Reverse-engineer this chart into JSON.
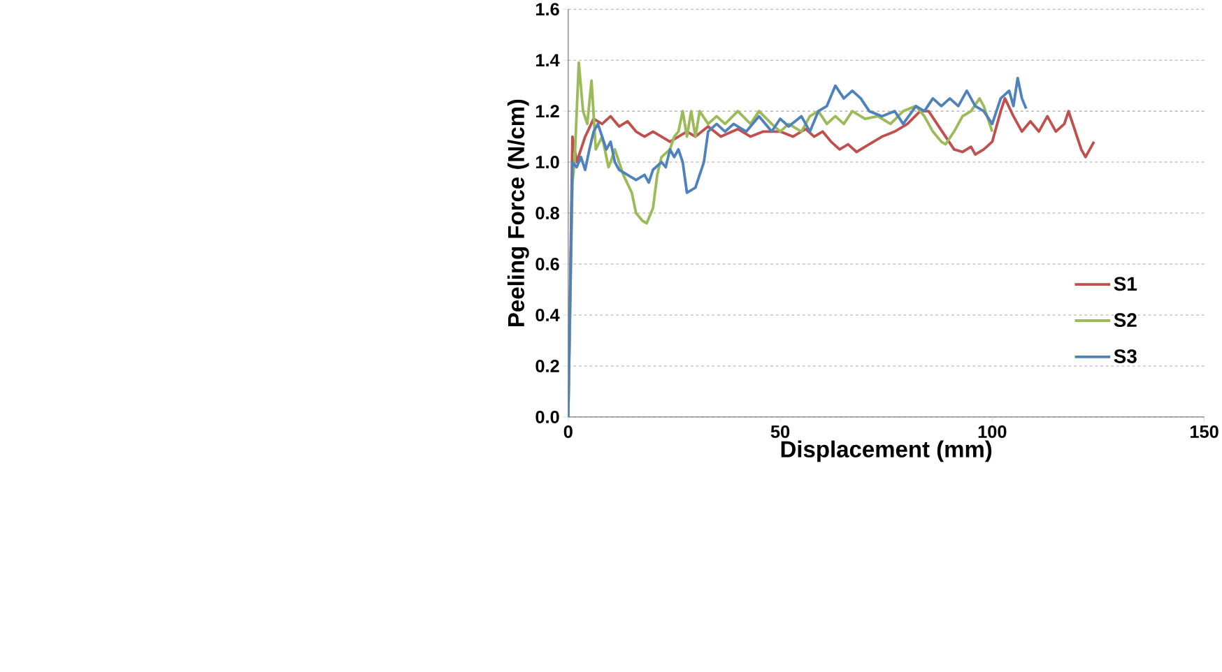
{
  "chart_data": {
    "type": "line",
    "xlabel": "Displacement (mm)",
    "ylabel": "Peeling Force (N/cm)",
    "xlim": [
      0,
      150
    ],
    "xticks": [
      0,
      50,
      100,
      150
    ],
    "ylim": [
      0,
      1.6
    ],
    "yticks": [
      {
        "value": 0,
        "label": "0.0"
      },
      {
        "value": 0.2,
        "label": "0.2"
      },
      {
        "value": 0.4,
        "label": "0.4"
      },
      {
        "value": 0.6,
        "label": "0.6"
      },
      {
        "value": 0.8,
        "label": "0.8"
      },
      {
        "value": 1.0,
        "label": "1.0"
      },
      {
        "value": 1.2,
        "label": "1.2"
      },
      {
        "value": 1.4,
        "label": "1.4"
      },
      {
        "value": 1.6,
        "label": "1.6"
      }
    ],
    "grid": "y",
    "legend": "right",
    "marker": "none",
    "line_style": "solid",
    "series": [
      {
        "name": "S1",
        "color": "#c0504d",
        "x": [
          0,
          1,
          2,
          3,
          4,
          6,
          8,
          10,
          12,
          14,
          16,
          18,
          20,
          22,
          24,
          26,
          28,
          30,
          33,
          36,
          40,
          43,
          46,
          50,
          53,
          56,
          58,
          60,
          62,
          64,
          66,
          68,
          70,
          72,
          74,
          77,
          80,
          83,
          85,
          87,
          89,
          91,
          93,
          95,
          96,
          98,
          100,
          102,
          103,
          105,
          107,
          109,
          111,
          113,
          115,
          117,
          118,
          120,
          121,
          122,
          123,
          124
        ],
        "values": [
          0,
          1.1,
          1.0,
          1.05,
          1.1,
          1.17,
          1.15,
          1.18,
          1.14,
          1.16,
          1.12,
          1.1,
          1.12,
          1.1,
          1.08,
          1.1,
          1.12,
          1.1,
          1.14,
          1.1,
          1.13,
          1.1,
          1.12,
          1.12,
          1.1,
          1.13,
          1.1,
          1.12,
          1.08,
          1.05,
          1.07,
          1.04,
          1.06,
          1.08,
          1.1,
          1.12,
          1.15,
          1.2,
          1.2,
          1.15,
          1.1,
          1.05,
          1.04,
          1.06,
          1.03,
          1.05,
          1.08,
          1.2,
          1.25,
          1.18,
          1.12,
          1.16,
          1.12,
          1.18,
          1.12,
          1.15,
          1.2,
          1.1,
          1.05,
          1.02,
          1.05,
          1.08
        ]
      },
      {
        "name": "S2",
        "color": "#9bbb59",
        "x": [
          0,
          1,
          1.5,
          2.5,
          3.5,
          4.5,
          5.5,
          6.5,
          8,
          9.5,
          10,
          11,
          13,
          15,
          16,
          17.5,
          18.5,
          20,
          21,
          22,
          24,
          25,
          26,
          27,
          28,
          29,
          30,
          31,
          33,
          35,
          37,
          40,
          43,
          45,
          48,
          50,
          52,
          55,
          57,
          59,
          61,
          63,
          65,
          67,
          70,
          73,
          76,
          79,
          82,
          84,
          86,
          88,
          89,
          91,
          93,
          95,
          97,
          98,
          100
        ],
        "values": [
          0,
          0.92,
          1.0,
          1.39,
          1.2,
          1.15,
          1.32,
          1.05,
          1.1,
          0.98,
          1.0,
          1.05,
          0.95,
          0.88,
          0.8,
          0.77,
          0.76,
          0.82,
          0.95,
          1.02,
          1.05,
          1.1,
          1.12,
          1.2,
          1.1,
          1.2,
          1.1,
          1.2,
          1.15,
          1.18,
          1.15,
          1.2,
          1.15,
          1.2,
          1.15,
          1.12,
          1.15,
          1.12,
          1.18,
          1.2,
          1.15,
          1.18,
          1.15,
          1.2,
          1.17,
          1.18,
          1.15,
          1.2,
          1.22,
          1.18,
          1.12,
          1.08,
          1.07,
          1.12,
          1.18,
          1.2,
          1.25,
          1.22,
          1.12
        ]
      },
      {
        "name": "S3",
        "color": "#4f81bd",
        "x": [
          0,
          0.5,
          1,
          2,
          3,
          4,
          5,
          6,
          7,
          8,
          9,
          10,
          11,
          12,
          14,
          16,
          18,
          19,
          20,
          22,
          23,
          24,
          25,
          26,
          27,
          28,
          30,
          32,
          33,
          35,
          37,
          39,
          42,
          45,
          48,
          50,
          52,
          55,
          57,
          59,
          61,
          63,
          65,
          67,
          69,
          71,
          74,
          77,
          79,
          82,
          84,
          86,
          88,
          90,
          92,
          94,
          96,
          98,
          100,
          102,
          104,
          105,
          106,
          107,
          108
        ],
        "values": [
          0,
          0.5,
          1.0,
          0.98,
          1.02,
          0.97,
          1.05,
          1.12,
          1.15,
          1.1,
          1.05,
          1.08,
          1.0,
          0.97,
          0.95,
          0.93,
          0.95,
          0.92,
          0.97,
          1.0,
          0.98,
          1.05,
          1.02,
          1.05,
          1.0,
          0.88,
          0.9,
          1.0,
          1.12,
          1.15,
          1.12,
          1.15,
          1.12,
          1.18,
          1.12,
          1.17,
          1.14,
          1.18,
          1.12,
          1.2,
          1.22,
          1.3,
          1.25,
          1.28,
          1.25,
          1.2,
          1.18,
          1.2,
          1.15,
          1.22,
          1.2,
          1.25,
          1.22,
          1.25,
          1.22,
          1.28,
          1.22,
          1.2,
          1.15,
          1.25,
          1.28,
          1.22,
          1.33,
          1.25,
          1.21
        ]
      }
    ]
  }
}
